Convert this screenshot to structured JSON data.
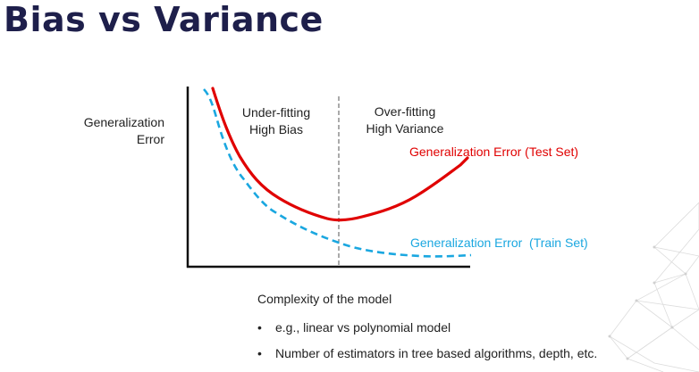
{
  "slide": {
    "title": "Bias vs Variance"
  },
  "diagram": {
    "y_label_lines": [
      "Generalization",
      "Error"
    ],
    "regions": {
      "underfitting": [
        "Under-fitting",
        "High Bias"
      ],
      "overfitting": [
        "Over-fitting",
        "High Variance"
      ]
    },
    "curves": {
      "test": {
        "label": "Generalization Error (Test Set)",
        "color": "#e00000",
        "style": "solid"
      },
      "train": {
        "label": "Generalization Error  (Train Set)",
        "color": "#1aa7e0",
        "style": "dashed"
      }
    },
    "x_label": "Complexity of the model"
  },
  "bullets": [
    "e.g., linear vs polynomial model",
    "Number of estimators in tree based algorithms, depth, etc."
  ],
  "colors": {
    "title": "#1e1f4b",
    "axis": "#111111"
  }
}
